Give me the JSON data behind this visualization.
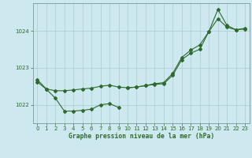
{
  "line1_x": [
    0,
    1,
    2,
    3,
    4,
    5,
    6,
    7,
    8,
    9
  ],
  "line1_y": [
    1022.62,
    1022.42,
    1022.18,
    1021.83,
    1021.83,
    1021.85,
    1021.88,
    1022.0,
    1022.03,
    1021.93
  ],
  "line2_x": [
    0,
    1,
    2,
    3,
    4,
    5,
    6,
    7,
    8,
    9,
    10,
    11,
    12,
    13,
    14,
    15,
    16,
    17,
    18,
    19,
    20,
    21,
    22,
    23
  ],
  "line2_y": [
    1022.68,
    1022.43,
    1022.38,
    1022.38,
    1022.4,
    1022.43,
    1022.45,
    1022.5,
    1022.53,
    1022.48,
    1022.46,
    1022.48,
    1022.52,
    1022.55,
    1022.57,
    1022.8,
    1023.22,
    1023.4,
    1023.5,
    1023.98,
    1024.33,
    1024.1,
    1024.03,
    1024.05
  ],
  "line3_x": [
    10,
    11,
    12,
    13,
    14,
    15,
    16,
    17,
    18,
    19,
    20,
    21,
    22,
    23
  ],
  "line3_y": [
    1022.46,
    1022.48,
    1022.52,
    1022.57,
    1022.6,
    1022.85,
    1023.28,
    1023.48,
    1023.62,
    1023.98,
    1024.58,
    1024.15,
    1024.03,
    1024.07
  ],
  "line_color": "#2d6a2d",
  "bg_color": "#cde8ee",
  "grid_color": "#aaccd4",
  "xlabel": "Graphe pression niveau de la mer (hPa)",
  "ylim": [
    1021.5,
    1024.75
  ],
  "xlim": [
    -0.5,
    23.5
  ],
  "yticks": [
    1022,
    1023,
    1024
  ],
  "xticks": [
    0,
    1,
    2,
    3,
    4,
    5,
    6,
    7,
    8,
    9,
    10,
    11,
    12,
    13,
    14,
    15,
    16,
    17,
    18,
    19,
    20,
    21,
    22,
    23
  ]
}
